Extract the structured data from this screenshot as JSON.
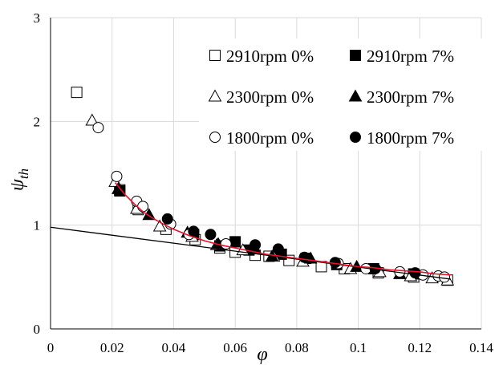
{
  "chart_data": {
    "type": "scatter",
    "xlabel": "φ",
    "ylabel": "ψ",
    "ylabel_sub": "th",
    "xlim": [
      0,
      0.14
    ],
    "ylim": [
      0,
      3
    ],
    "x_ticks": [
      "0",
      "0.02",
      "0.04",
      "0.06",
      "0.08",
      "0.1",
      "0.12",
      "0.14"
    ],
    "y_ticks": [
      "0",
      "1",
      "2",
      "3"
    ],
    "grid": true,
    "legend_placement": "top-right",
    "colors": {
      "fit_curve": "#e8102a",
      "tangent_line": "#000000",
      "grid": "#d9d9d9",
      "marker": "#000000"
    },
    "series": [
      {
        "name": "2910rpm 0%",
        "marker": "square-open",
        "x": [
          0.0085,
          0.0225,
          0.0285,
          0.0375,
          0.047,
          0.055,
          0.06,
          0.0665,
          0.071,
          0.0775,
          0.088,
          0.0955,
          0.1065,
          0.118,
          0.129
        ],
        "y": [
          2.28,
          1.34,
          1.15,
          0.96,
          0.86,
          0.78,
          0.74,
          0.71,
          0.7,
          0.66,
          0.6,
          0.58,
          0.54,
          0.5,
          0.47
        ]
      },
      {
        "name": "2910rpm 7%",
        "marker": "square-filled",
        "x": [
          0.0225,
          0.0465,
          0.055,
          0.06,
          0.0645,
          0.075,
          0.083,
          0.093,
          0.105,
          0.118
        ],
        "y": [
          1.33,
          0.91,
          0.8,
          0.84,
          0.76,
          0.72,
          0.68,
          0.62,
          0.58,
          0.53
        ]
      },
      {
        "name": "2300rpm 0%",
        "marker": "triangle-open",
        "x": [
          0.0135,
          0.021,
          0.028,
          0.0355,
          0.046,
          0.054,
          0.0625,
          0.0725,
          0.082,
          0.0975,
          0.107,
          0.117,
          0.124,
          0.129
        ],
        "y": [
          2.01,
          1.42,
          1.16,
          0.99,
          0.89,
          0.81,
          0.76,
          0.7,
          0.65,
          0.58,
          0.55,
          0.51,
          0.49,
          0.47
        ]
      },
      {
        "name": "2300rpm 7%",
        "marker": "triangle-filled",
        "x": [
          0.022,
          0.032,
          0.0445,
          0.0545,
          0.0665,
          0.072,
          0.0845,
          0.0995,
          0.1135
        ],
        "y": [
          1.35,
          1.1,
          0.93,
          0.82,
          0.77,
          0.7,
          0.68,
          0.6,
          0.53
        ]
      },
      {
        "name": "1800rpm 0%",
        "marker": "circle-open",
        "x": [
          0.0155,
          0.0215,
          0.028,
          0.03,
          0.039,
          0.045,
          0.057,
          0.0935,
          0.1025,
          0.1135,
          0.121,
          0.126,
          0.128
        ],
        "y": [
          1.94,
          1.47,
          1.23,
          1.18,
          1.01,
          0.91,
          0.82,
          0.63,
          0.58,
          0.55,
          0.52,
          0.51,
          0.5
        ]
      },
      {
        "name": "1800rpm 7%",
        "marker": "circle-filled",
        "x": [
          0.038,
          0.0465,
          0.052,
          0.0665,
          0.074,
          0.0825,
          0.0925,
          0.1055,
          0.1185
        ],
        "y": [
          1.06,
          0.94,
          0.91,
          0.81,
          0.77,
          0.69,
          0.64,
          0.58,
          0.54
        ]
      }
    ],
    "fit_curve": {
      "x": [
        0.021,
        0.024,
        0.027,
        0.03,
        0.033,
        0.036,
        0.04,
        0.045,
        0.05,
        0.055,
        0.06,
        0.065,
        0.07,
        0.075,
        0.08,
        0.085,
        0.09,
        0.095,
        0.1,
        0.105,
        0.11,
        0.115,
        0.12,
        0.125,
        0.13
      ],
      "y": [
        1.41,
        1.3,
        1.21,
        1.13,
        1.07,
        1.02,
        0.96,
        0.9,
        0.85,
        0.81,
        0.78,
        0.75,
        0.72,
        0.7,
        0.68,
        0.66,
        0.64,
        0.62,
        0.6,
        0.59,
        0.57,
        0.56,
        0.55,
        0.53,
        0.52
      ]
    },
    "tangent_line": {
      "x": [
        0,
        0.13
      ],
      "y": [
        0.98,
        0.48
      ]
    }
  }
}
